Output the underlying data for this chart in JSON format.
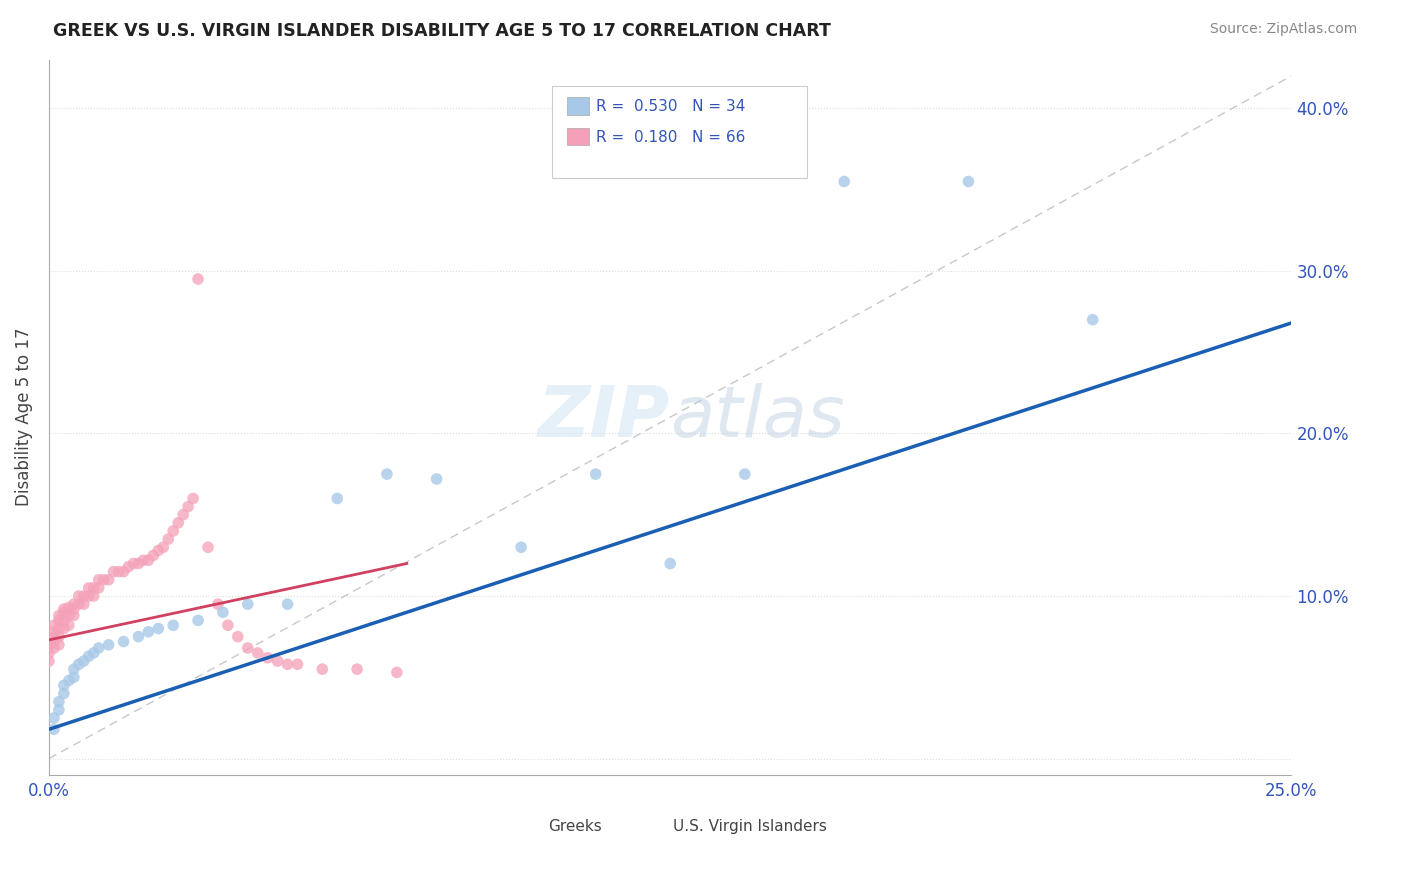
{
  "title": "GREEK VS U.S. VIRGIN ISLANDER DISABILITY AGE 5 TO 17 CORRELATION CHART",
  "source": "Source: ZipAtlas.com",
  "ylabel": "Disability Age 5 to 17",
  "xlim": [
    0.0,
    0.25
  ],
  "ylim": [
    -0.01,
    0.43
  ],
  "xticks": [
    0.0,
    0.05,
    0.1,
    0.15,
    0.2,
    0.25
  ],
  "xticklabels": [
    "0.0%",
    "",
    "",
    "",
    "",
    "25.0%"
  ],
  "yticks": [
    0.0,
    0.1,
    0.2,
    0.3,
    0.4
  ],
  "yticklabels": [
    "",
    "10.0%",
    "20.0%",
    "30.0%",
    "40.0%"
  ],
  "greek_R": 0.53,
  "greek_N": 34,
  "usvi_R": 0.18,
  "usvi_N": 66,
  "greek_color": "#a8c8e8",
  "usvi_color": "#f4a0b8",
  "greek_line_color": "#1a5fb4",
  "usvi_line_color": "#d04060",
  "ref_line_color": "#c8c8c8",
  "watermark_color": "#d0e4f4",
  "background_color": "#ffffff",
  "greek_x": [
    0.001,
    0.001,
    0.002,
    0.002,
    0.003,
    0.003,
    0.004,
    0.005,
    0.005,
    0.006,
    0.007,
    0.008,
    0.009,
    0.01,
    0.012,
    0.015,
    0.018,
    0.02,
    0.022,
    0.025,
    0.03,
    0.035,
    0.04,
    0.048,
    0.058,
    0.068,
    0.078,
    0.095,
    0.11,
    0.125,
    0.14,
    0.16,
    0.185,
    0.21
  ],
  "greek_y": [
    0.018,
    0.025,
    0.03,
    0.035,
    0.04,
    0.045,
    0.048,
    0.05,
    0.055,
    0.058,
    0.06,
    0.063,
    0.065,
    0.068,
    0.07,
    0.072,
    0.075,
    0.078,
    0.08,
    0.082,
    0.085,
    0.09,
    0.095,
    0.095,
    0.16,
    0.175,
    0.172,
    0.13,
    0.175,
    0.12,
    0.175,
    0.355,
    0.355,
    0.27
  ],
  "usvi_x": [
    0.0,
    0.0,
    0.0,
    0.001,
    0.001,
    0.001,
    0.001,
    0.001,
    0.002,
    0.002,
    0.002,
    0.002,
    0.002,
    0.003,
    0.003,
    0.003,
    0.003,
    0.004,
    0.004,
    0.004,
    0.005,
    0.005,
    0.005,
    0.006,
    0.006,
    0.007,
    0.007,
    0.008,
    0.008,
    0.009,
    0.009,
    0.01,
    0.01,
    0.011,
    0.012,
    0.013,
    0.014,
    0.015,
    0.016,
    0.017,
    0.018,
    0.019,
    0.02,
    0.021,
    0.022,
    0.023,
    0.024,
    0.025,
    0.026,
    0.027,
    0.028,
    0.029,
    0.03,
    0.032,
    0.034,
    0.036,
    0.038,
    0.04,
    0.042,
    0.044,
    0.046,
    0.048,
    0.05,
    0.055,
    0.062,
    0.07
  ],
  "usvi_y": [
    0.06,
    0.065,
    0.07,
    0.068,
    0.072,
    0.075,
    0.078,
    0.082,
    0.07,
    0.075,
    0.08,
    0.085,
    0.088,
    0.08,
    0.085,
    0.09,
    0.092,
    0.082,
    0.088,
    0.093,
    0.088,
    0.092,
    0.095,
    0.095,
    0.1,
    0.095,
    0.1,
    0.1,
    0.105,
    0.1,
    0.105,
    0.105,
    0.11,
    0.11,
    0.11,
    0.115,
    0.115,
    0.115,
    0.118,
    0.12,
    0.12,
    0.122,
    0.122,
    0.125,
    0.128,
    0.13,
    0.135,
    0.14,
    0.145,
    0.15,
    0.155,
    0.16,
    0.295,
    0.13,
    0.095,
    0.082,
    0.075,
    0.068,
    0.065,
    0.062,
    0.06,
    0.058,
    0.058,
    0.055,
    0.055,
    0.053
  ],
  "greek_line_x0": 0.0,
  "greek_line_y0": 0.018,
  "greek_line_x1": 0.25,
  "greek_line_y1": 0.268,
  "usvi_line_x0": 0.0,
  "usvi_line_y0": 0.073,
  "usvi_line_x1": 0.072,
  "usvi_line_y1": 0.12
}
